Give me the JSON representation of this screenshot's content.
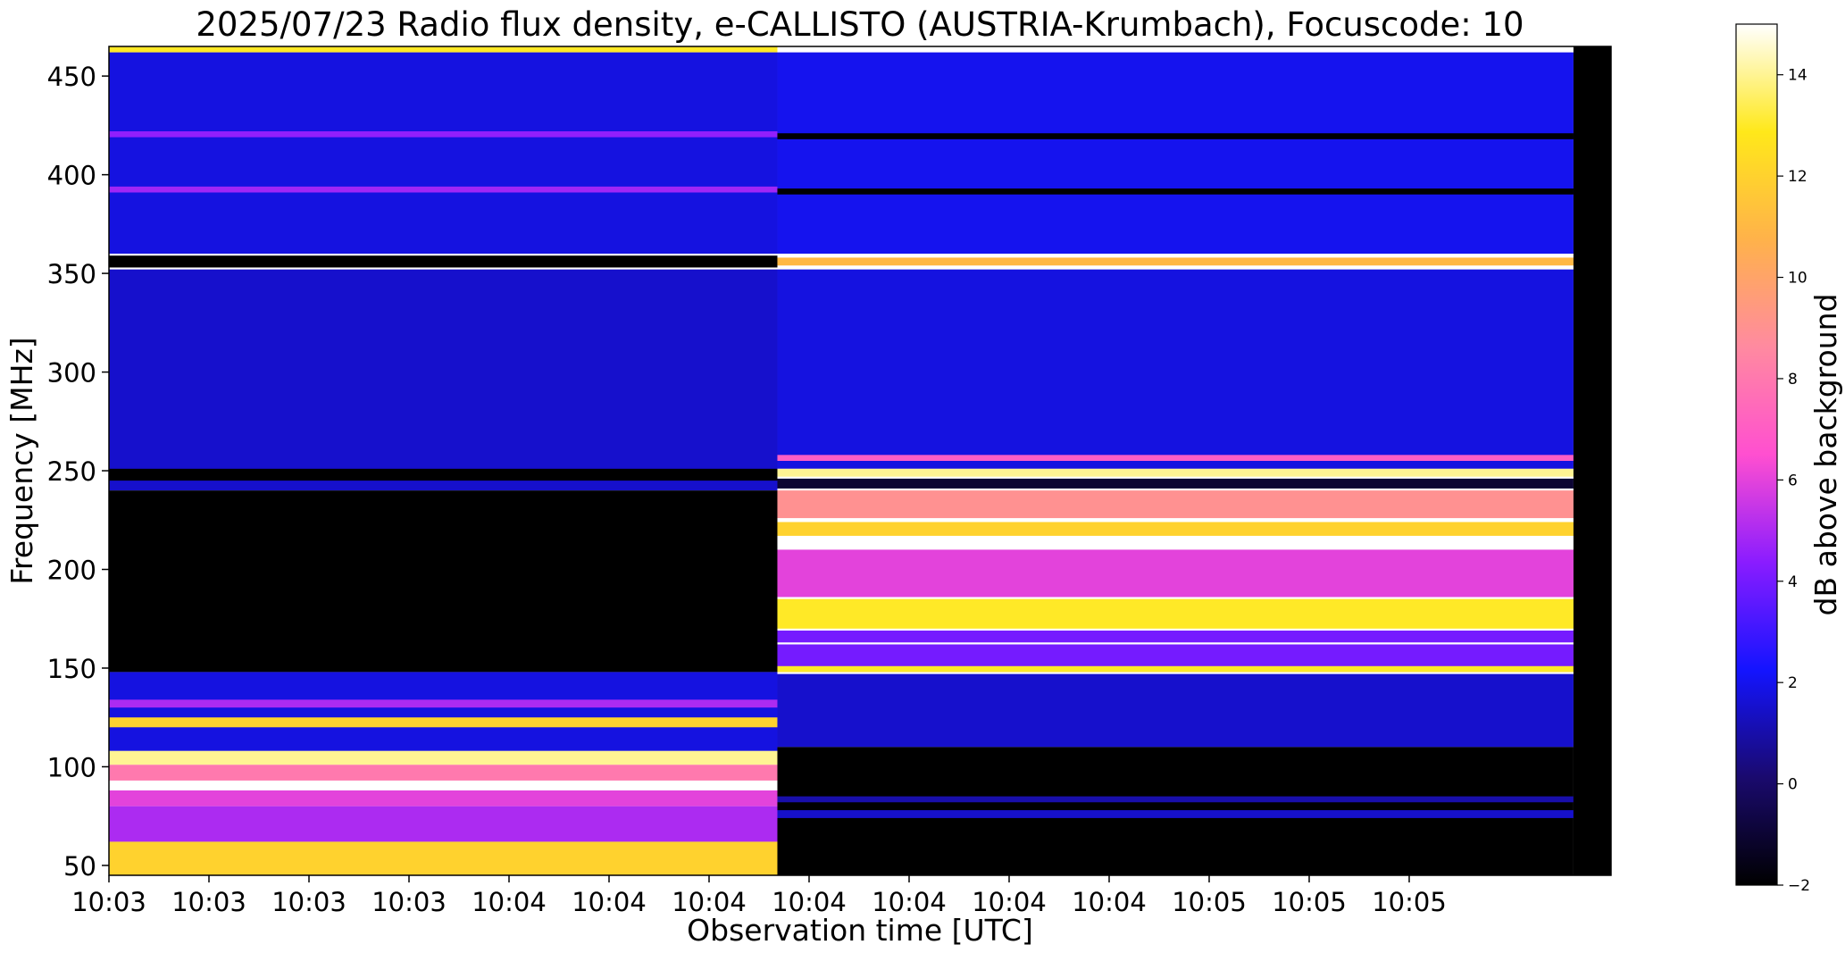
{
  "chart_data": {
    "type": "heatmap",
    "title": "2025/07/23  Radio flux density, e-CALLISTO (AUSTRIA-Krumbach), Focuscode: 10",
    "xlabel": "Observation time [UTC]",
    "ylabel": "Frequency [MHz]",
    "colorbar_label": "dB above background",
    "x_tick_labels": [
      "10:03",
      "10:03",
      "10:03",
      "10:03",
      "10:04",
      "10:04",
      "10:04",
      "10:04",
      "10:04",
      "10:04",
      "10:04",
      "10:05",
      "10:05",
      "10:05"
    ],
    "y_ticks": [
      50,
      100,
      150,
      200,
      250,
      300,
      350,
      400,
      450
    ],
    "ylim": [
      45,
      465
    ],
    "colorbar_ticks": [
      -2,
      0,
      2,
      4,
      6,
      8,
      10,
      12,
      14
    ],
    "clim": [
      -2,
      15
    ],
    "colormap": [
      "#000000",
      "#1a0a6e",
      "#1414ff",
      "#8a1cff",
      "#ff4fd0",
      "#ff8aa0",
      "#ffb24a",
      "#ffe81a",
      "#ffffff"
    ],
    "segments": [
      {
        "time_range": [
          0.0,
          0.445
        ],
        "bands": [
          {
            "freq": [
              462,
              465
            ],
            "level": 13
          },
          {
            "freq": [
              360,
              462
            ],
            "level": 1.8
          },
          {
            "freq": [
              419,
              422
            ],
            "level": 4.5
          },
          {
            "freq": [
              391,
              394
            ],
            "level": 4.8
          },
          {
            "freq": [
              353,
              359
            ],
            "level": -2
          },
          {
            "freq": [
              240,
              352
            ],
            "level": 1.5
          },
          {
            "freq": [
              245,
              251
            ],
            "level": -2
          },
          {
            "freq": [
              148,
              240
            ],
            "level": -2
          },
          {
            "freq": [
              108,
              148
            ],
            "level": 1.8
          },
          {
            "freq": [
              130,
              134
            ],
            "level": 5
          },
          {
            "freq": [
              120,
              125
            ],
            "level": 12
          },
          {
            "freq": [
              101,
              108
            ],
            "level": 14
          },
          {
            "freq": [
              93,
              101
            ],
            "level": 8
          },
          {
            "freq": [
              88,
              93
            ],
            "level": 15
          },
          {
            "freq": [
              80,
              88
            ],
            "level": 6
          },
          {
            "freq": [
              62,
              80
            ],
            "level": 5
          },
          {
            "freq": [
              45,
              62
            ],
            "level": 12
          }
        ]
      },
      {
        "time_range": [
          0.445,
          0.975
        ],
        "bands": [
          {
            "freq": [
              360,
              462
            ],
            "level": 2
          },
          {
            "freq": [
              418,
              421
            ],
            "level": -2
          },
          {
            "freq": [
              390,
              393
            ],
            "level": -2
          },
          {
            "freq": [
              354,
              358
            ],
            "level": 11
          },
          {
            "freq": [
              251,
              352
            ],
            "level": 1.8
          },
          {
            "freq": [
              255,
              258
            ],
            "level": 7
          },
          {
            "freq": [
              247,
              251
            ],
            "level": 14
          },
          {
            "freq": [
              241,
              246
            ],
            "level": -1
          },
          {
            "freq": [
              226,
              240
            ],
            "level": 9
          },
          {
            "freq": [
              217,
              224
            ],
            "level": 12
          },
          {
            "freq": [
              212,
              217
            ],
            "level": 15
          },
          {
            "freq": [
              186,
              210
            ],
            "level": 6
          },
          {
            "freq": [
              170,
              185
            ],
            "level": 13
          },
          {
            "freq": [
              163,
              169
            ],
            "level": 4
          },
          {
            "freq": [
              148,
              162
            ],
            "level": 4
          },
          {
            "freq": [
              148,
              151
            ],
            "level": 13
          },
          {
            "freq": [
              110,
              147
            ],
            "level": 1.5
          },
          {
            "freq": [
              45,
              110
            ],
            "level": -2
          },
          {
            "freq": [
              82,
              85
            ],
            "level": 1
          },
          {
            "freq": [
              74,
              78
            ],
            "level": 1.5
          }
        ]
      },
      {
        "time_range": [
          0.975,
          1.0
        ],
        "bands": [
          {
            "freq": [
              45,
              465
            ],
            "level": -2
          }
        ]
      }
    ]
  }
}
